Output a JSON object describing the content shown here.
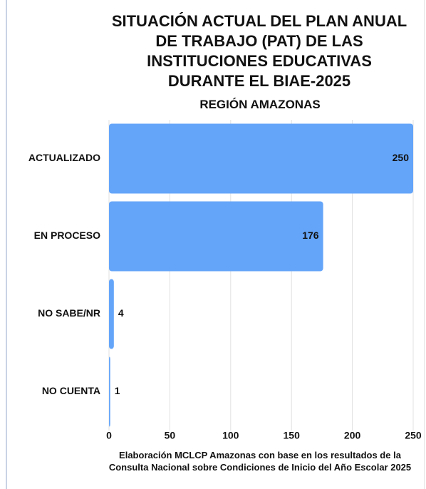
{
  "chart_data": {
    "type": "bar",
    "orientation": "horizontal",
    "title": "SITUACIÓN ACTUAL DEL PLAN ANUAL DE TRABAJO (PAT) DE LAS INSTITUCIONES EDUCATIVAS DURANTE EL BIAE-2025",
    "subtitle": "REGIÓN AMAZONAS",
    "categories": [
      "ACTUALIZADO",
      "EN PROCESO",
      "NO SABE/NR",
      "NO CUENTA"
    ],
    "values": [
      250,
      176,
      4,
      1
    ],
    "color": "#64a5f9",
    "xlim": [
      0,
      250
    ],
    "xticks": [
      0,
      50,
      100,
      150,
      200,
      250
    ],
    "grid": true,
    "footnote": "Elaboración MCLCP Amazonas con base en los resultados de la Consulta Nacional sobre Condiciones de Inicio del Año Escolar 2025"
  }
}
